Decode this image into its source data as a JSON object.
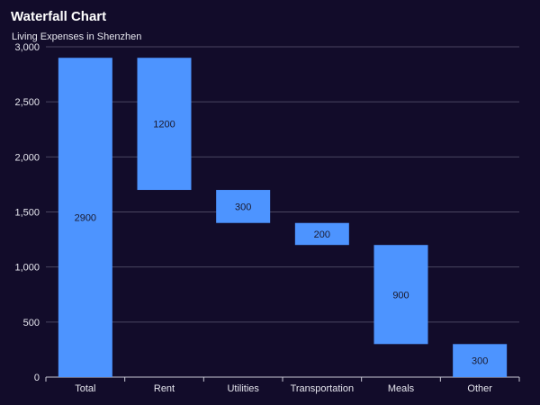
{
  "title": "Waterfall Chart",
  "subtitle": "Living Expenses in Shenzhen",
  "colors": {
    "background": "#120c2a",
    "bar": "#4d94ff",
    "grid": "#4a4560",
    "axis_text": "#e6e6ee",
    "label_text": "#1a1a2e"
  },
  "chart_data": {
    "type": "bar",
    "subtype": "waterfall",
    "title": "Waterfall Chart",
    "subtitle": "Living Expenses in Shenzhen",
    "xlabel": "",
    "ylabel": "",
    "ylim": [
      0,
      3000
    ],
    "yticks": [
      0,
      500,
      1000,
      1500,
      2000,
      2500,
      3000
    ],
    "ytick_labels": [
      "0",
      "500",
      "1,000",
      "1,500",
      "2,000",
      "2,500",
      "3,000"
    ],
    "grid": true,
    "categories": [
      "Total",
      "Rent",
      "Utilities",
      "Transportation",
      "Meals",
      "Other"
    ],
    "values": [
      2900,
      1200,
      300,
      200,
      900,
      300
    ],
    "bar_ranges": [
      [
        0,
        2900
      ],
      [
        1700,
        2900
      ],
      [
        1400,
        1700
      ],
      [
        1200,
        1400
      ],
      [
        300,
        1200
      ],
      [
        0,
        300
      ]
    ],
    "data_labels": [
      "2900",
      "1200",
      "300",
      "200",
      "900",
      "300"
    ]
  }
}
